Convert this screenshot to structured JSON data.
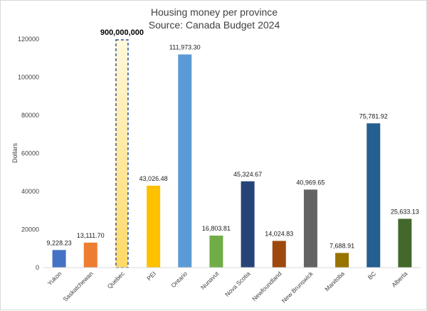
{
  "chart_data": {
    "type": "bar",
    "title": "Housing money per province",
    "subtitle": "Source: Canada Budget 2024",
    "xlabel": "",
    "ylabel": "Dollars",
    "ylim": [
      0,
      120000
    ],
    "yticks": [
      0,
      20000,
      40000,
      60000,
      80000,
      100000,
      120000
    ],
    "grid": false,
    "legend": "none",
    "categories": [
      "Yukon",
      "Saskatchewan",
      "Quebec",
      "PEI",
      "Ontario",
      "Nunavut",
      "Nova Scotia",
      "Newfoundland",
      "New Brunswick",
      "Manitoba",
      "BC",
      "Alberta"
    ],
    "values": [
      9228.23,
      13111.7,
      900000000,
      43026.48,
      111973.3,
      16803.81,
      45324.67,
      14024.83,
      40969.65,
      7688.91,
      75781.92,
      25633.13
    ],
    "value_labels": [
      "9,228.23",
      "13,111.70",
      "900,000,000",
      "43,026.48",
      "111,973.30",
      "16,803.81",
      "45,324.67",
      "14,024.83",
      "40,969.65",
      "7,688.91",
      "75,781.92",
      "25,633.13"
    ],
    "highlighted_category": "Quebec",
    "highlight_note": "bar exceeds axis maximum; drawn clipped with dashed outline",
    "colors": [
      "#4472C4",
      "#ED7D31",
      "#FFE699",
      "#FFC000",
      "#5B9BD5",
      "#70AD47",
      "#264478",
      "#9E480E",
      "#636363",
      "#997300",
      "#255E91",
      "#43682B"
    ],
    "highlight_outline_color": "#2F5597"
  }
}
